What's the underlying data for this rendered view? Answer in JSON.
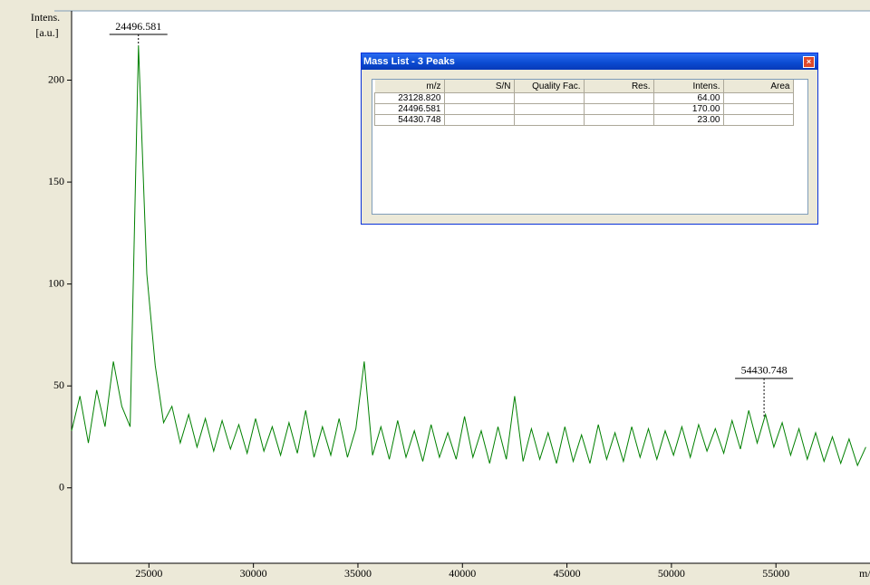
{
  "chart_data": {
    "type": "line",
    "y_label": "Intens.",
    "y_unit": "[a.u.]",
    "x_label": "m/z",
    "x": [
      21300,
      21700,
      22100,
      22500,
      22900,
      23300,
      23700,
      24100,
      24500,
      24900,
      25300,
      25700,
      26100,
      26500,
      26900,
      27300,
      27700,
      28100,
      28500,
      28900,
      29300,
      29700,
      30100,
      30500,
      30900,
      31300,
      31700,
      32100,
      32500,
      32900,
      33300,
      33700,
      34100,
      34500,
      34900,
      35300,
      35700,
      36100,
      36500,
      36900,
      37300,
      37700,
      38100,
      38500,
      38900,
      39300,
      39700,
      40100,
      40500,
      40900,
      41300,
      41700,
      42100,
      42500,
      42900,
      43300,
      43700,
      44100,
      44500,
      44900,
      45300,
      45700,
      46100,
      46500,
      46900,
      47300,
      47700,
      48100,
      48500,
      48900,
      49300,
      49700,
      50100,
      50500,
      50900,
      51300,
      51700,
      52100,
      52500,
      52900,
      53300,
      53700,
      54100,
      54500,
      54900,
      55300,
      55700,
      56100,
      56500,
      56900,
      57300,
      57700,
      58100,
      58500,
      58900,
      59300
    ],
    "series": [
      {
        "color": "#008000",
        "values": [
          28,
          45,
          22,
          48,
          30,
          62,
          40,
          30,
          217,
          105,
          60,
          32,
          40,
          22,
          36,
          20,
          34,
          18,
          33,
          19,
          31,
          17,
          34,
          18,
          30,
          16,
          32,
          17,
          38,
          15,
          30,
          16,
          34,
          15,
          29,
          62,
          16,
          30,
          14,
          33,
          15,
          28,
          13,
          31,
          15,
          27,
          14,
          35,
          15,
          28,
          12,
          30,
          14,
          45,
          13,
          29,
          14,
          27,
          12,
          30,
          13,
          26,
          12,
          31,
          14,
          27,
          13,
          30,
          15,
          29,
          14,
          28,
          16,
          30,
          15,
          31,
          18,
          29,
          17,
          33,
          19,
          38,
          22,
          36,
          20,
          32,
          16,
          29,
          14,
          27,
          13,
          25,
          12,
          24,
          11,
          20
        ]
      }
    ],
    "annotations": [
      {
        "x": 24496.581,
        "y": 217
      },
      {
        "x": 54430.748,
        "y": 35
      }
    ],
    "xlim": [
      21300,
      59500
    ],
    "ylim": [
      -37,
      234
    ],
    "xticks": [
      25000,
      30000,
      35000,
      40000,
      45000,
      50000,
      55000
    ],
    "yticks": [
      0,
      50,
      100,
      150,
      200
    ]
  },
  "mass_list": {
    "title": "Mass List - 3 Peaks",
    "columns": [
      "m/z",
      "S/N",
      "Quality Fac.",
      "Res.",
      "Intens.",
      "Area"
    ],
    "rows": [
      [
        "23128.820",
        "64.00"
      ],
      [
        "24496.581",
        "170.00"
      ],
      [
        "54430.748",
        "23.00"
      ]
    ]
  }
}
